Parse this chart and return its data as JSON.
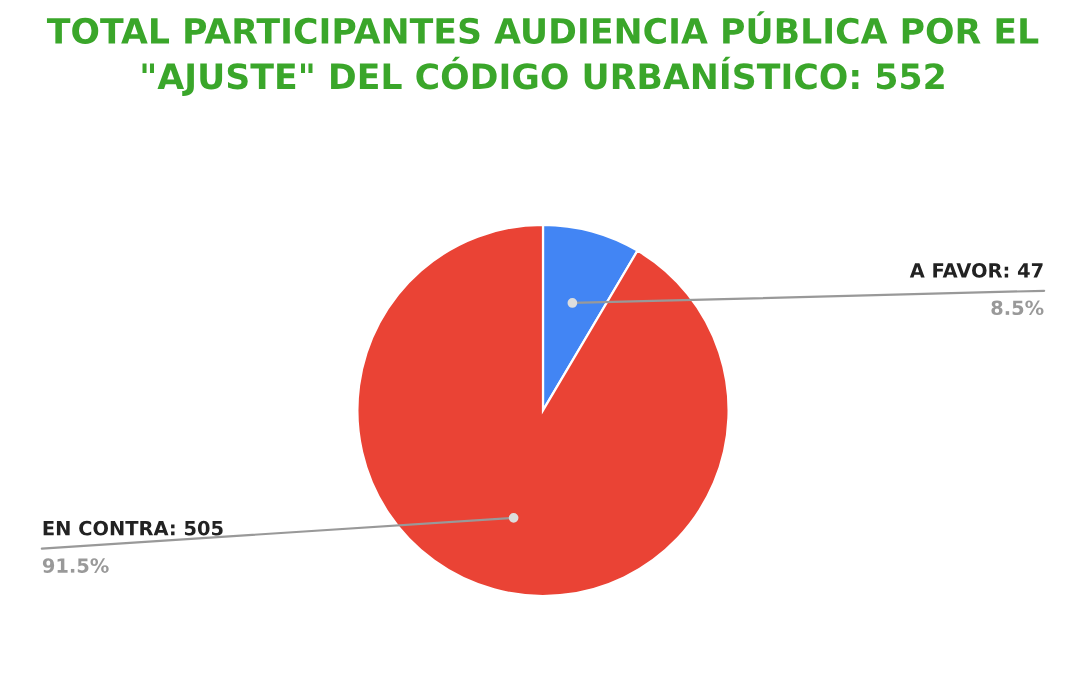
{
  "chart_data": {
    "type": "pie",
    "title": "TOTAL PARTICIPANTES AUDIENCIA PÚBLICA POR EL \"AJUSTE\" DEL CÓDIGO URBANÍSTICO: 552",
    "categories": [
      "A FAVOR: 47",
      "EN CONTRA: 505"
    ],
    "values": [
      8.5,
      91.5
    ],
    "colors": [
      "#4285f4",
      "#ea4335"
    ],
    "value_labels": [
      "8.5%",
      "91.5%"
    ]
  }
}
